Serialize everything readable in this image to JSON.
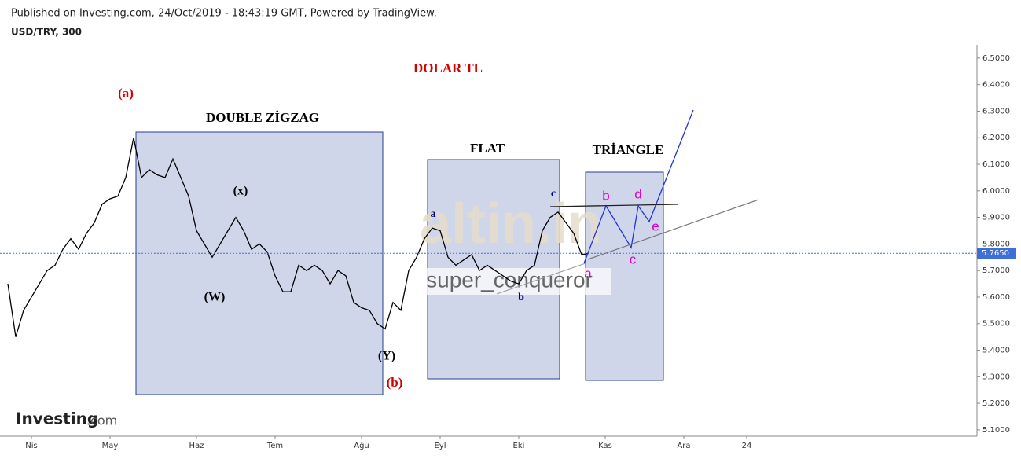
{
  "chart_data": {
    "type": "line",
    "caption": "Published on Investing.com, 24/Oct/2019 - 18:43:19 GMT, Powered by TradingView.",
    "title": "USD/TRY, 300",
    "logo": {
      "name": "Investing",
      "suffix": ".com"
    },
    "color": "#000000",
    "categories": [
      null,
      null,
      null,
      "Nis",
      null,
      null,
      null,
      null,
      null,
      null,
      null,
      null,
      null,
      "May",
      null,
      null,
      null,
      null,
      null,
      null,
      null,
      null,
      null,
      null,
      "Haz",
      null,
      null,
      null,
      null,
      null,
      null,
      null,
      null,
      null,
      "Tem",
      null,
      null,
      null,
      null,
      null,
      null,
      null,
      null,
      null,
      null,
      "Ağu",
      null,
      null,
      null,
      null,
      null,
      null,
      null,
      null,
      null,
      "Eyl",
      null,
      null,
      null,
      null,
      null,
      null,
      null,
      null,
      null,
      "Eki",
      null,
      null,
      null,
      null,
      null,
      null,
      null,
      null,
      null,
      null,
      "Kas",
      null,
      null,
      null,
      null,
      null,
      null,
      null,
      null,
      null,
      "Ara",
      null,
      null,
      null,
      null,
      null,
      null,
      null,
      "24",
      null,
      null,
      null,
      null,
      null,
      null,
      null,
      null,
      null,
      null,
      null,
      null,
      null,
      null,
      null,
      null,
      null,
      null,
      null,
      null,
      null,
      null,
      null,
      null,
      null,
      null,
      null,
      null,
      null
    ],
    "values": [
      5.65,
      5.45,
      5.55,
      5.6,
      5.65,
      5.7,
      5.72,
      5.78,
      5.82,
      5.78,
      5.84,
      5.88,
      5.95,
      5.97,
      5.98,
      6.05,
      6.2,
      6.05,
      6.08,
      6.06,
      6.05,
      6.12,
      6.05,
      5.98,
      5.85,
      5.8,
      5.75,
      5.8,
      5.85,
      5.9,
      5.85,
      5.78,
      5.8,
      5.77,
      5.68,
      5.62,
      5.62,
      5.72,
      5.7,
      5.72,
      5.7,
      5.65,
      5.7,
      5.68,
      5.58,
      5.56,
      5.55,
      5.5,
      5.48,
      5.58,
      5.55,
      5.7,
      5.75,
      5.82,
      5.86,
      5.85,
      5.75,
      5.72,
      5.74,
      5.76,
      5.7,
      5.72,
      5.7,
      5.68,
      5.66,
      5.65,
      5.7,
      5.72,
      5.85,
      5.9,
      5.92,
      5.88,
      5.84,
      5.76,
      5.765,
      null,
      null,
      null,
      null,
      null,
      null,
      null,
      null,
      null,
      null,
      null,
      null,
      null,
      null,
      null,
      null,
      null,
      null,
      null,
      null,
      null,
      null,
      null,
      null,
      null,
      null,
      null,
      null,
      null,
      null,
      null,
      null,
      null,
      null,
      null,
      null,
      null,
      null,
      null,
      null,
      null,
      null,
      null,
      null,
      null,
      null,
      null,
      null,
      null
    ],
    "ylim": [
      5.076,
      6.55
    ],
    "yticks": [
      {
        "value": 5.1,
        "label": "5.1000"
      },
      {
        "value": 5.2,
        "label": "5.2000"
      },
      {
        "value": 5.3,
        "label": "5.3000"
      },
      {
        "value": 5.4,
        "label": "5.4000"
      },
      {
        "value": 5.5,
        "label": "5.5000"
      },
      {
        "value": 5.6,
        "label": "5.6000"
      },
      {
        "value": 5.7,
        "label": "5.7000"
      },
      {
        "value": 5.8,
        "label": "5.8000"
      },
      {
        "value": 5.9,
        "label": "5.9000"
      },
      {
        "value": 6.0,
        "label": "6.0000"
      },
      {
        "value": 6.1,
        "label": "6.1000"
      },
      {
        "value": 6.2,
        "label": "6.2000"
      },
      {
        "value": 6.3,
        "label": "6.3000"
      },
      {
        "value": 6.4,
        "label": "6.4000"
      },
      {
        "value": 6.5,
        "label": "6.5000"
      }
    ],
    "current_price": {
      "value": 5.765,
      "label": "5.7650",
      "color": "#3d6fd6"
    },
    "annotations": [
      {
        "text": "DOLAR TL",
        "color": "#d40000"
      },
      {
        "text": "(a)",
        "color": "#d40000"
      },
      {
        "text": "DOUBLE ZİGZAG",
        "color": "#000000"
      },
      {
        "text": "(x)",
        "color": "#000000"
      },
      {
        "text": "(W)",
        "color": "#000000"
      },
      {
        "text": "(Y)",
        "color": "#000000"
      },
      {
        "text": "(b)",
        "color": "#d40000"
      },
      {
        "text": "FLAT",
        "color": "#000000"
      },
      {
        "text": "a",
        "color": "#00008b"
      },
      {
        "text": "b",
        "color": "#00008b"
      },
      {
        "text": "c",
        "color": "#00008b"
      },
      {
        "text": "TRİANGLE",
        "color": "#000000"
      },
      {
        "text": "b",
        "color": "#d400d4"
      },
      {
        "text": "d",
        "color": "#d400d4"
      },
      {
        "text": "c",
        "color": "#d400d4"
      },
      {
        "text": "e",
        "color": "#d400d4"
      },
      {
        "text": "a",
        "color": "#d400d4"
      },
      {
        "text": "super_conqueror",
        "color": "#666666"
      },
      {
        "text": "altin.in",
        "color": "#e6dccb"
      }
    ]
  }
}
